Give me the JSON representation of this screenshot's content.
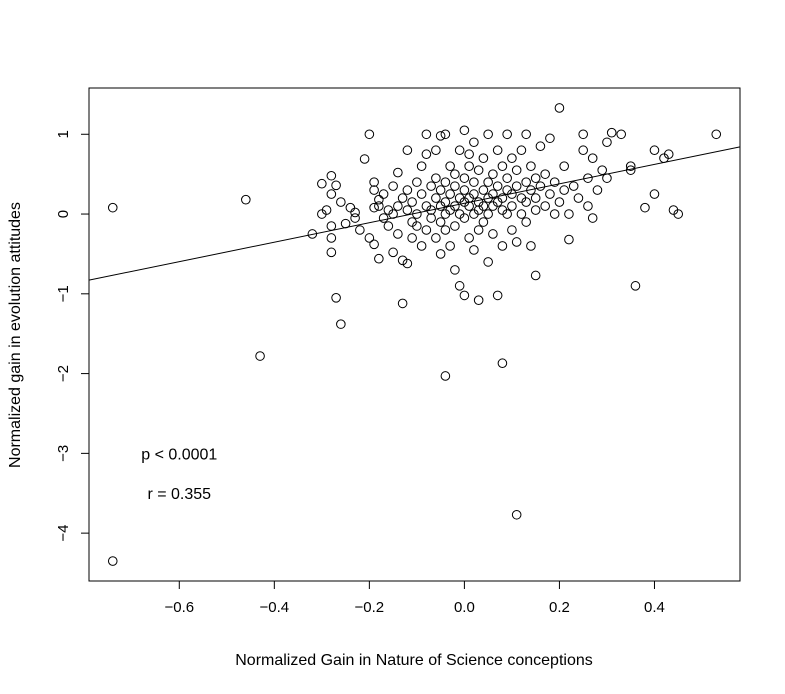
{
  "chart_data": {
    "type": "scatter",
    "title": "",
    "xlabel": "Normalized Gain in Nature of Science conceptions",
    "ylabel": "Normalized gain in evolution attitudes",
    "xlim": [
      -0.79,
      0.58
    ],
    "ylim": [
      -4.6,
      1.58
    ],
    "x_ticks": [
      -0.6,
      -0.4,
      -0.2,
      0.0,
      0.2,
      0.4
    ],
    "x_tick_labels": [
      "−0.6",
      "−0.4",
      "−0.2",
      "0.0",
      "0.2",
      "0.4"
    ],
    "y_ticks": [
      -4,
      -3,
      -2,
      -1,
      0,
      1
    ],
    "y_tick_labels": [
      "−4",
      "−3",
      "−2",
      "−1",
      "0",
      "1"
    ],
    "grid": false,
    "legend": "none",
    "marker": "open-circle",
    "regression_line": {
      "intercept": 0.135,
      "slope": 1.22
    },
    "annotations": [
      {
        "text": "p < 0.0001",
        "x": -0.6,
        "y": -3.0
      },
      {
        "text": "r = 0.355",
        "x": -0.6,
        "y": -3.5
      }
    ],
    "points": [
      [
        -0.74,
        0.08
      ],
      [
        -0.74,
        -4.35
      ],
      [
        -0.46,
        0.18
      ],
      [
        -0.43,
        -1.78
      ],
      [
        -0.32,
        -0.25
      ],
      [
        -0.3,
        0.0
      ],
      [
        -0.3,
        0.38
      ],
      [
        -0.29,
        0.05
      ],
      [
        -0.28,
        -0.15
      ],
      [
        -0.28,
        -0.3
      ],
      [
        -0.28,
        -0.48
      ],
      [
        -0.28,
        0.25
      ],
      [
        -0.28,
        0.48
      ],
      [
        -0.27,
        -1.05
      ],
      [
        -0.27,
        0.36
      ],
      [
        -0.26,
        -1.38
      ],
      [
        -0.26,
        0.15
      ],
      [
        -0.25,
        -0.12
      ],
      [
        -0.24,
        0.08
      ],
      [
        -0.23,
        -0.05
      ],
      [
        -0.23,
        0.02
      ],
      [
        -0.22,
        -0.2
      ],
      [
        -0.21,
        0.69
      ],
      [
        -0.2,
        -0.3
      ],
      [
        -0.2,
        1.0
      ],
      [
        -0.19,
        0.08
      ],
      [
        -0.19,
        0.3
      ],
      [
        -0.19,
        0.4
      ],
      [
        -0.19,
        -0.38
      ],
      [
        -0.18,
        -0.56
      ],
      [
        -0.18,
        0.1
      ],
      [
        -0.18,
        0.18
      ],
      [
        -0.17,
        0.25
      ],
      [
        -0.17,
        -0.05
      ],
      [
        -0.16,
        -0.15
      ],
      [
        -0.16,
        0.05
      ],
      [
        -0.15,
        0.0
      ],
      [
        -0.15,
        -0.48
      ],
      [
        -0.15,
        0.35
      ],
      [
        -0.14,
        0.1
      ],
      [
        -0.14,
        -0.25
      ],
      [
        -0.14,
        0.52
      ],
      [
        -0.13,
        -0.58
      ],
      [
        -0.13,
        -1.12
      ],
      [
        -0.13,
        0.2
      ],
      [
        -0.12,
        -0.62
      ],
      [
        -0.12,
        0.05
      ],
      [
        -0.12,
        0.3
      ],
      [
        -0.12,
        0.8
      ],
      [
        -0.11,
        -0.1
      ],
      [
        -0.11,
        -0.3
      ],
      [
        -0.11,
        0.15
      ],
      [
        -0.1,
        0.4
      ],
      [
        -0.1,
        0.0
      ],
      [
        -0.1,
        -0.15
      ],
      [
        -0.09,
        0.25
      ],
      [
        -0.09,
        -0.4
      ],
      [
        -0.09,
        0.6
      ],
      [
        -0.08,
        0.1
      ],
      [
        -0.08,
        -0.2
      ],
      [
        -0.08,
        0.75
      ],
      [
        -0.08,
        1.0
      ],
      [
        -0.07,
        0.05
      ],
      [
        -0.07,
        0.35
      ],
      [
        -0.07,
        -0.05
      ],
      [
        -0.06,
        0.2
      ],
      [
        -0.06,
        -0.3
      ],
      [
        -0.06,
        0.45
      ],
      [
        -0.06,
        0.8
      ],
      [
        -0.05,
        0.1
      ],
      [
        -0.05,
        -0.1
      ],
      [
        -0.05,
        0.3
      ],
      [
        -0.05,
        -0.5
      ],
      [
        -0.05,
        0.98
      ],
      [
        -0.04,
        0.0
      ],
      [
        -0.04,
        0.15
      ],
      [
        -0.04,
        0.4
      ],
      [
        -0.04,
        -0.2
      ],
      [
        -0.04,
        1.0
      ],
      [
        -0.04,
        -2.03
      ],
      [
        -0.03,
        0.25
      ],
      [
        -0.03,
        -0.4
      ],
      [
        -0.03,
        0.6
      ],
      [
        -0.03,
        0.05
      ],
      [
        -0.02,
        0.1
      ],
      [
        -0.02,
        0.35
      ],
      [
        -0.02,
        -0.15
      ],
      [
        -0.02,
        0.5
      ],
      [
        -0.02,
        -0.7
      ],
      [
        -0.01,
        0.2
      ],
      [
        -0.01,
        0.0
      ],
      [
        -0.01,
        0.8
      ],
      [
        -0.01,
        -0.9
      ],
      [
        0.0,
        0.15
      ],
      [
        0.0,
        0.3
      ],
      [
        0.0,
        -0.05
      ],
      [
        0.0,
        0.45
      ],
      [
        0.0,
        1.05
      ],
      [
        0.0,
        -1.02
      ],
      [
        0.01,
        0.2
      ],
      [
        0.01,
        0.1
      ],
      [
        0.01,
        0.6
      ],
      [
        0.01,
        -0.3
      ],
      [
        0.01,
        0.75
      ],
      [
        0.02,
        0.0
      ],
      [
        0.02,
        0.25
      ],
      [
        0.02,
        0.4
      ],
      [
        0.02,
        -0.45
      ],
      [
        0.02,
        0.9
      ],
      [
        0.03,
        0.15
      ],
      [
        0.03,
        0.05
      ],
      [
        0.03,
        -0.2
      ],
      [
        0.03,
        0.55
      ],
      [
        0.03,
        -1.08
      ],
      [
        0.04,
        0.3
      ],
      [
        0.04,
        0.1
      ],
      [
        0.04,
        0.7
      ],
      [
        0.04,
        -0.1
      ],
      [
        0.05,
        0.2
      ],
      [
        0.05,
        0.4
      ],
      [
        0.05,
        0.0
      ],
      [
        0.05,
        1.0
      ],
      [
        0.05,
        -0.6
      ],
      [
        0.06,
        0.25
      ],
      [
        0.06,
        0.1
      ],
      [
        0.06,
        0.5
      ],
      [
        0.06,
        -0.25
      ],
      [
        0.07,
        0.35
      ],
      [
        0.07,
        0.15
      ],
      [
        0.07,
        0.8
      ],
      [
        0.07,
        -1.02
      ],
      [
        0.08,
        0.2
      ],
      [
        0.08,
        0.05
      ],
      [
        0.08,
        0.6
      ],
      [
        0.08,
        -0.4
      ],
      [
        0.08,
        -1.87
      ],
      [
        0.09,
        0.3
      ],
      [
        0.09,
        0.45
      ],
      [
        0.09,
        0.0
      ],
      [
        0.09,
        1.0
      ],
      [
        0.1,
        0.25
      ],
      [
        0.1,
        0.1
      ],
      [
        0.1,
        0.7
      ],
      [
        0.1,
        -0.2
      ],
      [
        0.11,
        0.35
      ],
      [
        0.11,
        0.55
      ],
      [
        0.11,
        -0.35
      ],
      [
        0.11,
        -3.77
      ],
      [
        0.12,
        0.2
      ],
      [
        0.12,
        0.8
      ],
      [
        0.12,
        0.0
      ],
      [
        0.13,
        0.4
      ],
      [
        0.13,
        0.15
      ],
      [
        0.13,
        -0.1
      ],
      [
        0.13,
        1.0
      ],
      [
        0.14,
        0.3
      ],
      [
        0.14,
        0.6
      ],
      [
        0.14,
        -0.4
      ],
      [
        0.15,
        0.2
      ],
      [
        0.15,
        0.45
      ],
      [
        0.15,
        0.05
      ],
      [
        0.15,
        -0.77
      ],
      [
        0.16,
        0.35
      ],
      [
        0.16,
        0.85
      ],
      [
        0.17,
        0.1
      ],
      [
        0.17,
        0.5
      ],
      [
        0.18,
        0.25
      ],
      [
        0.18,
        0.95
      ],
      [
        0.19,
        0.0
      ],
      [
        0.19,
        0.4
      ],
      [
        0.2,
        0.15
      ],
      [
        0.2,
        1.33
      ],
      [
        0.21,
        0.6
      ],
      [
        0.21,
        0.3
      ],
      [
        0.22,
        -0.32
      ],
      [
        0.22,
        0.0
      ],
      [
        0.23,
        0.35
      ],
      [
        0.24,
        0.2
      ],
      [
        0.25,
        0.8
      ],
      [
        0.25,
        1.0
      ],
      [
        0.26,
        0.1
      ],
      [
        0.26,
        0.45
      ],
      [
        0.27,
        -0.05
      ],
      [
        0.27,
        0.7
      ],
      [
        0.28,
        0.3
      ],
      [
        0.29,
        0.55
      ],
      [
        0.3,
        0.45
      ],
      [
        0.3,
        0.9
      ],
      [
        0.31,
        1.02
      ],
      [
        0.33,
        1.0
      ],
      [
        0.35,
        0.55
      ],
      [
        0.35,
        0.6
      ],
      [
        0.36,
        -0.9
      ],
      [
        0.38,
        0.08
      ],
      [
        0.4,
        0.25
      ],
      [
        0.4,
        0.8
      ],
      [
        0.42,
        0.7
      ],
      [
        0.43,
        0.75
      ],
      [
        0.44,
        0.05
      ],
      [
        0.45,
        0.0
      ],
      [
        0.53,
        1.0
      ]
    ]
  }
}
